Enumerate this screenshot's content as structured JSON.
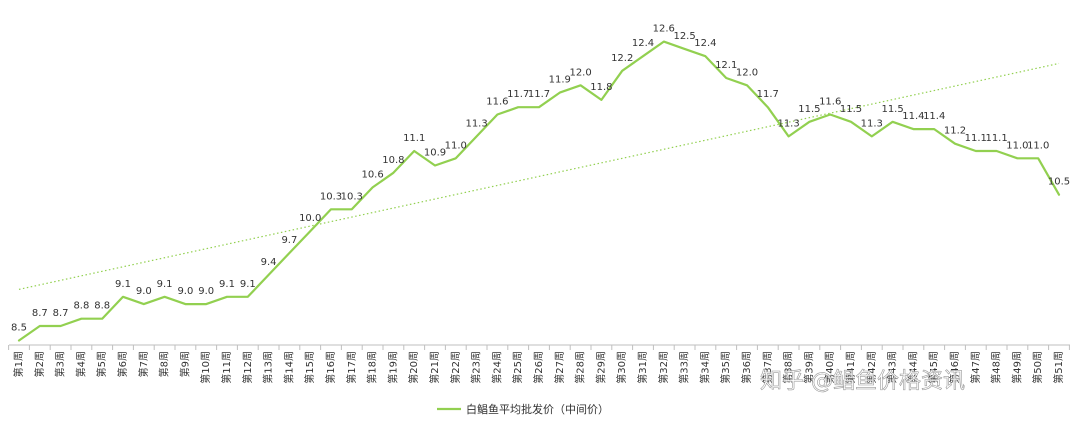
{
  "chart_data": {
    "type": "line",
    "title": "",
    "xlabel": "",
    "ylabel": "",
    "ylim": [
      8.0,
      12.8
    ],
    "categories": [
      "第1周",
      "第2周",
      "第3周",
      "第4周",
      "第5周",
      "第6周",
      "第7周",
      "第8周",
      "第9周",
      "第10周",
      "第11周",
      "第12周",
      "第13周",
      "第14周",
      "第15周",
      "第16周",
      "第17周",
      "第18周",
      "第19周",
      "第20周",
      "第21周",
      "第22周",
      "第23周",
      "第24周",
      "第25周",
      "第26周",
      "第27周",
      "第28周",
      "第29周",
      "第30周",
      "第31周",
      "第32周",
      "第33周",
      "第34周",
      "第35周",
      "第36周",
      "第37周",
      "第38周",
      "第39周",
      "第40周",
      "第41周",
      "第42周",
      "第43周",
      "第44周",
      "第45周",
      "第46周",
      "第47周",
      "第48周",
      "第49周",
      "第50周",
      "第51周"
    ],
    "series": [
      {
        "name": "白鲳鱼平均批发价（中间价）",
        "color": "#92d050",
        "values": [
          8.5,
          8.7,
          8.7,
          8.8,
          8.8,
          9.1,
          9.0,
          9.1,
          9.0,
          9.0,
          9.1,
          9.1,
          9.4,
          9.7,
          10.0,
          10.3,
          10.3,
          10.6,
          10.8,
          11.1,
          10.9,
          11.0,
          11.3,
          11.6,
          11.7,
          11.7,
          11.9,
          12.0,
          11.8,
          12.2,
          12.4,
          12.6,
          12.5,
          12.4,
          12.1,
          12.0,
          11.7,
          11.3,
          11.5,
          11.6,
          11.5,
          11.3,
          11.5,
          11.4,
          11.4,
          11.2,
          11.1,
          11.1,
          11.0,
          11.0,
          10.5
        ]
      }
    ],
    "trendline": {
      "type": "linear",
      "style": "dotted",
      "color": "#92d050"
    },
    "grid": false,
    "legend_position": "bottom"
  },
  "watermark": "知乎 @鲳鱼价格资讯"
}
